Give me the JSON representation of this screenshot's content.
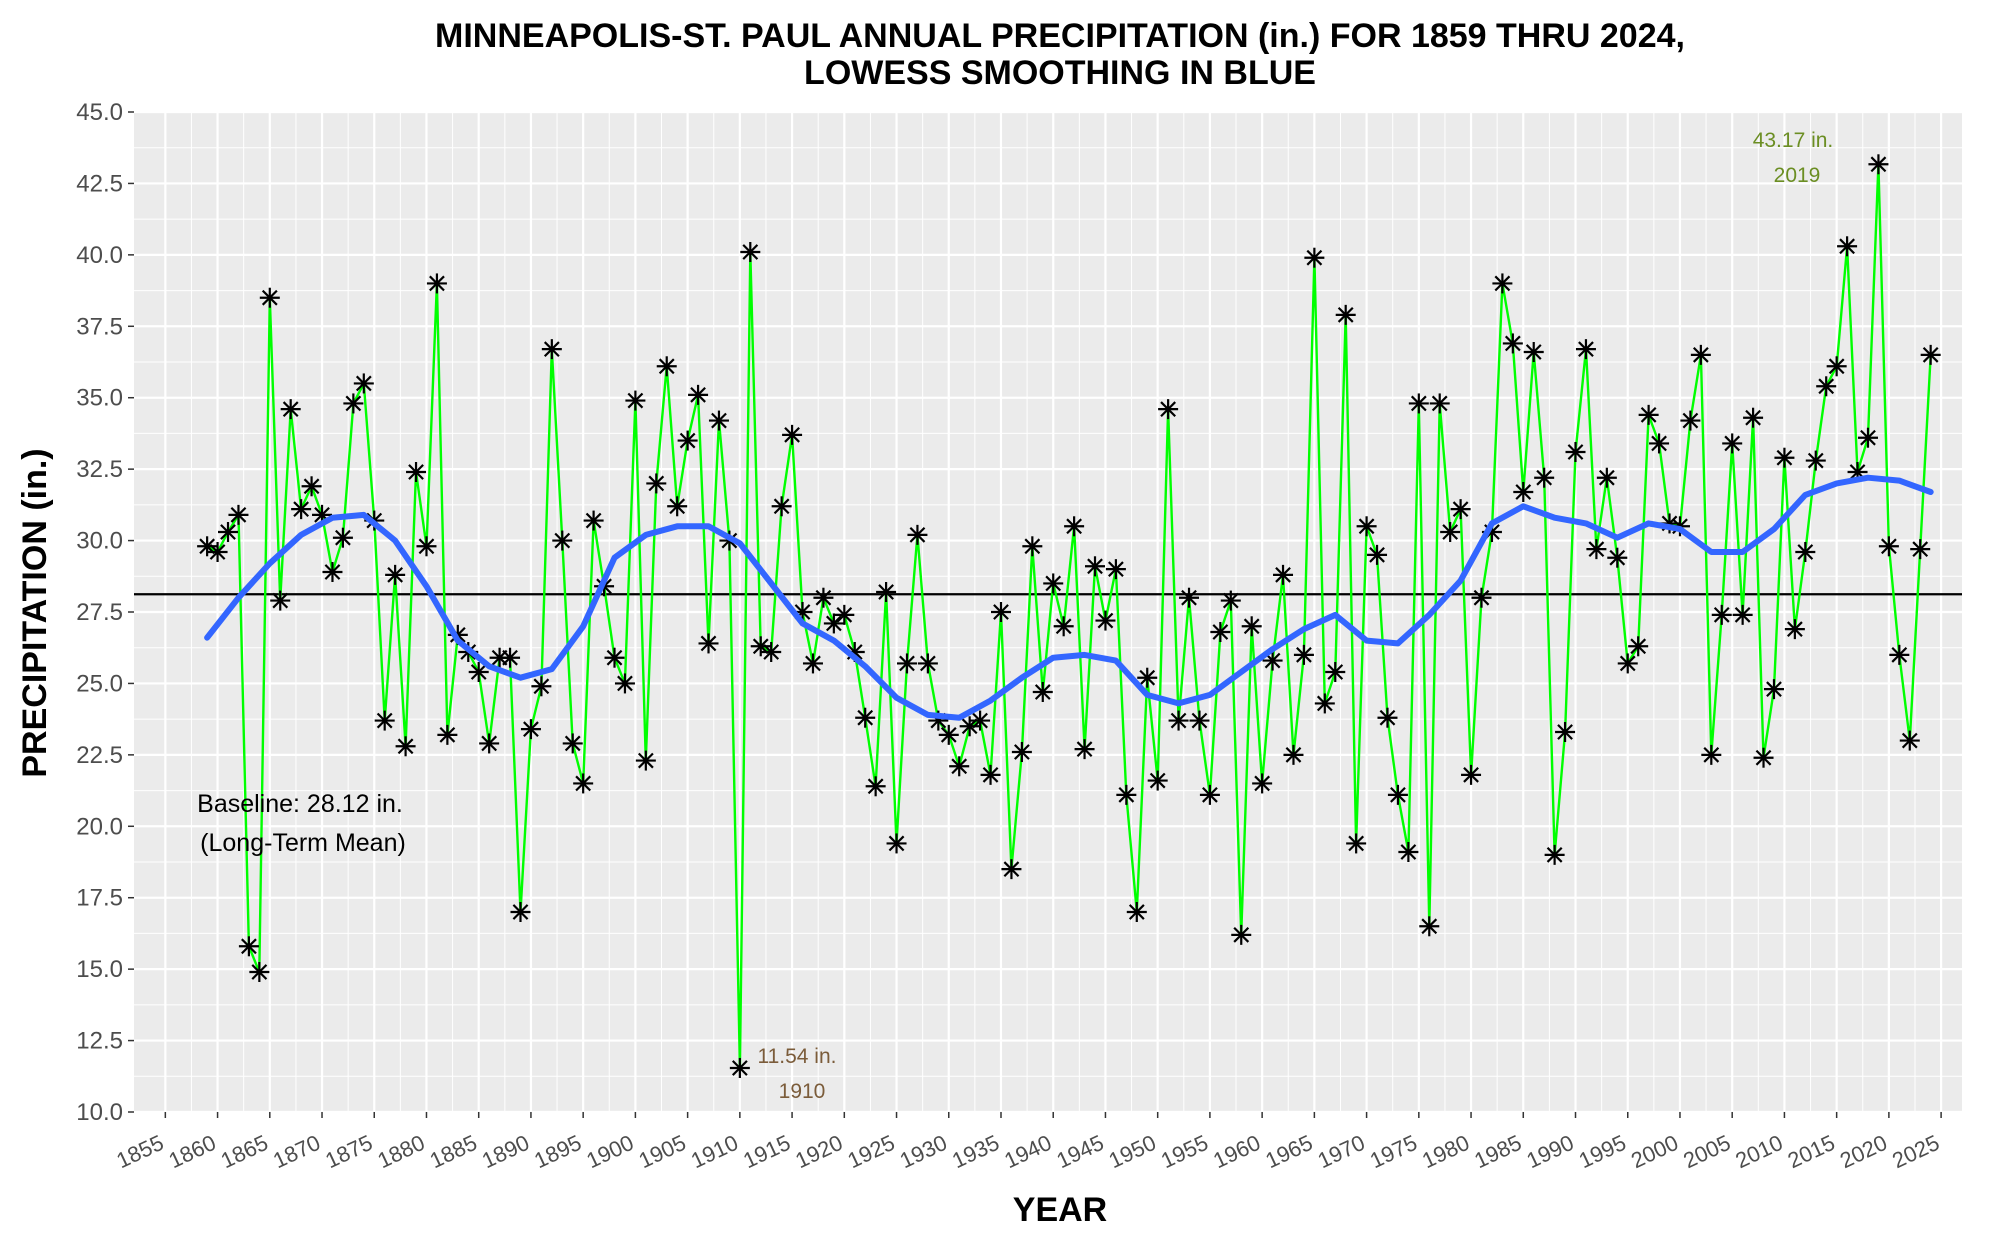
{
  "chart_data": {
    "type": "line",
    "title_line1": "MINNEAPOLIS-ST. PAUL ANNUAL PRECIPITATION (in.) FOR 1859 THRU 2024,",
    "title_line2": "LOWESS SMOOTHING IN BLUE",
    "xlabel": "YEAR",
    "ylabel": "PRECIPITATION (in.)",
    "xlim": [
      1852,
      2027
    ],
    "ylim": [
      10,
      45
    ],
    "x_ticks": [
      1855,
      1860,
      1865,
      1870,
      1875,
      1880,
      1885,
      1890,
      1895,
      1900,
      1905,
      1910,
      1915,
      1920,
      1925,
      1930,
      1935,
      1940,
      1945,
      1950,
      1955,
      1960,
      1965,
      1970,
      1975,
      1980,
      1985,
      1990,
      1995,
      2000,
      2005,
      2010,
      2015,
      2020,
      2025
    ],
    "y_ticks": [
      "10.0",
      "12.5",
      "15.0",
      "17.5",
      "20.0",
      "22.5",
      "25.0",
      "27.5",
      "30.0",
      "32.5",
      "35.0",
      "37.5",
      "40.0",
      "42.5",
      "45.0"
    ],
    "grid": true,
    "colors": {
      "panel": "#ebebeb",
      "grid": "#ffffff",
      "series_line": "#00ff00",
      "markers": "#000000",
      "smooth": "#3366ff",
      "baseline": "#000000"
    },
    "baseline": {
      "value": 28.12,
      "label_line1": "Baseline: 28.12 in.",
      "label_line2": "(Long-Term Mean)"
    },
    "annotations": {
      "min": {
        "year": 1910,
        "value": 11.54,
        "line1": "11.54 in.",
        "line2": "1910"
      },
      "max": {
        "year": 2019,
        "value": 43.17,
        "line1": "43.17 in.",
        "line2": "2019"
      }
    },
    "series": [
      {
        "x": [
          1859,
          1860,
          1861,
          1862,
          1863,
          1864,
          1865,
          1866,
          1867,
          1868,
          1869,
          1870,
          1871,
          1872,
          1873,
          1874,
          1875,
          1876,
          1877,
          1878,
          1879,
          1880,
          1881,
          1882,
          1883,
          1884,
          1885,
          1886,
          1887,
          1888,
          1889,
          1890,
          1891,
          1892,
          1893,
          1894,
          1895,
          1896,
          1897,
          1898,
          1899,
          1900,
          1901,
          1902,
          1903,
          1904,
          1905,
          1906,
          1907,
          1908,
          1909,
          1910,
          1911,
          1912,
          1913,
          1914,
          1915,
          1916,
          1917,
          1918,
          1919,
          1920,
          1921,
          1922,
          1923,
          1924,
          1925,
          1926,
          1927,
          1928,
          1929,
          1930,
          1931,
          1932,
          1933,
          1934,
          1935,
          1936,
          1937,
          1938,
          1939,
          1940,
          1941,
          1942,
          1943,
          1944,
          1945,
          1946,
          1947,
          1948,
          1949,
          1950,
          1951,
          1952,
          1953,
          1954,
          1955,
          1956,
          1957,
          1958,
          1959,
          1960,
          1961,
          1962,
          1963,
          1964,
          1965,
          1966,
          1967,
          1968,
          1969,
          1970,
          1971,
          1972,
          1973,
          1974,
          1975,
          1976,
          1977,
          1978,
          1979,
          1980,
          1981,
          1982,
          1983,
          1984,
          1985,
          1986,
          1987,
          1988,
          1989,
          1990,
          1991,
          1992,
          1993,
          1994,
          1995,
          1996,
          1997,
          1998,
          1999,
          2000,
          2001,
          2002,
          2003,
          2004,
          2005,
          2006,
          2007,
          2008,
          2009,
          2010,
          2011,
          2012,
          2013,
          2014,
          2015,
          2016,
          2017,
          2018,
          2019,
          2020,
          2021,
          2022,
          2023,
          2024
        ],
        "values": [
          29.8,
          29.6,
          30.3,
          30.9,
          15.8,
          14.9,
          38.5,
          27.9,
          34.6,
          31.1,
          31.9,
          30.9,
          28.9,
          30.1,
          34.8,
          35.5,
          30.7,
          23.7,
          28.8,
          22.8,
          32.4,
          29.8,
          39.0,
          23.2,
          26.7,
          26.1,
          25.4,
          22.9,
          25.9,
          25.9,
          17.0,
          23.4,
          24.9,
          36.7,
          30.0,
          22.9,
          21.5,
          30.7,
          28.4,
          25.9,
          25.0,
          34.9,
          22.3,
          32.0,
          36.1,
          31.2,
          33.5,
          35.1,
          26.4,
          34.2,
          30.0,
          11.54,
          40.1,
          26.3,
          26.1,
          31.2,
          33.7,
          27.5,
          25.7,
          28.0,
          27.1,
          27.4,
          26.1,
          23.8,
          21.4,
          28.2,
          19.4,
          25.7,
          30.2,
          25.7,
          23.7,
          23.2,
          22.1,
          23.5,
          23.7,
          21.8,
          27.5,
          18.5,
          22.6,
          29.8,
          24.7,
          28.5,
          27.0,
          30.5,
          22.7,
          29.1,
          27.2,
          29.0,
          21.1,
          17.0,
          25.2,
          21.6,
          34.6,
          23.7,
          28.0,
          23.7,
          21.1,
          26.8,
          27.9,
          16.2,
          27.0,
          21.5,
          25.8,
          28.8,
          22.5,
          26.0,
          39.9,
          24.3,
          25.4,
          37.9,
          19.4,
          30.5,
          29.5,
          23.8,
          21.1,
          19.1,
          34.8,
          16.5,
          34.8,
          30.3,
          31.1,
          21.8,
          28.0,
          30.3,
          39.0,
          36.9,
          31.7,
          36.6,
          32.2,
          19.0,
          23.3,
          33.1,
          36.7,
          29.7,
          32.2,
          29.4,
          25.7,
          26.3,
          34.4,
          33.4,
          30.6,
          30.5,
          34.2,
          36.5,
          22.5,
          27.4,
          33.4,
          27.4,
          34.3,
          22.4,
          24.8,
          32.9,
          26.9,
          29.6,
          32.8,
          35.4,
          36.1,
          40.3,
          32.4,
          33.6,
          43.17,
          29.8,
          26.0,
          23.0,
          29.7,
          36.5
        ]
      },
      {
        "x": [
          1859,
          1862,
          1865,
          1868,
          1871,
          1874,
          1877,
          1880,
          1883,
          1886,
          1889,
          1892,
          1895,
          1898,
          1901,
          1904,
          1907,
          1910,
          1913,
          1916,
          1919,
          1922,
          1925,
          1928,
          1931,
          1934,
          1937,
          1940,
          1943,
          1946,
          1949,
          1952,
          1955,
          1958,
          1961,
          1964,
          1967,
          1970,
          1973,
          1976,
          1979,
          1982,
          1985,
          1988,
          1991,
          1994,
          1997,
          2000,
          2003,
          2006,
          2009,
          2012,
          2015,
          2018,
          2021,
          2024
        ],
        "values": [
          26.6,
          28.0,
          29.2,
          30.2,
          30.8,
          30.9,
          30.0,
          28.4,
          26.5,
          25.6,
          25.2,
          25.5,
          27.0,
          29.4,
          30.2,
          30.5,
          30.5,
          29.9,
          28.5,
          27.1,
          26.5,
          25.6,
          24.5,
          23.9,
          23.8,
          24.4,
          25.2,
          25.9,
          26.0,
          25.8,
          24.6,
          24.3,
          24.6,
          25.4,
          26.2,
          26.9,
          27.4,
          26.5,
          26.4,
          27.4,
          28.6,
          30.6,
          31.2,
          30.8,
          30.6,
          30.1,
          30.6,
          30.4,
          29.6,
          29.6,
          30.4,
          31.6,
          32.0,
          32.2,
          32.1,
          31.7
        ]
      }
    ]
  }
}
